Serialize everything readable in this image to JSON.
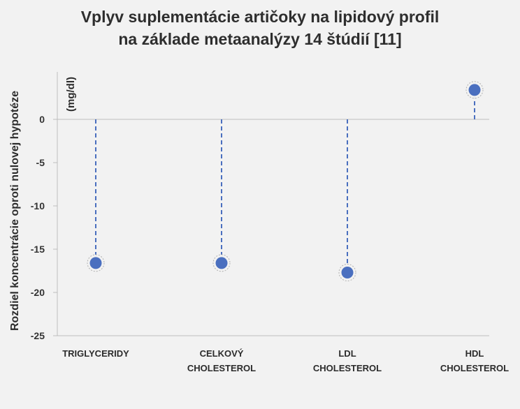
{
  "chart_data": {
    "type": "lollipop",
    "title_lines": [
      "Vplyv suplementácie artičoky na lipidový profil",
      "na základe metaanalýzy 14 štúdií [11]"
    ],
    "ylabel": "Rozdiel koncentrácie oproti nulovej hypotéze",
    "unit_label": "(mg/dl)",
    "ylim": [
      -25,
      5
    ],
    "yticks": [
      0,
      -5,
      -10,
      -15,
      -20,
      -25
    ],
    "categories": [
      [
        "TRIGLYCERIDY"
      ],
      [
        "CELKOVÝ",
        "CHOLESTEROL"
      ],
      [
        "LDL",
        "CHOLESTEROL"
      ],
      [
        "HDL",
        "CHOLESTEROL"
      ]
    ],
    "values": [
      -16.6,
      -16.6,
      -17.7,
      3.4
    ],
    "grid": false,
    "colors": {
      "marker": "#4a6fbf",
      "stem": "#4a6fbf",
      "axis": "#bdbdbd"
    }
  }
}
